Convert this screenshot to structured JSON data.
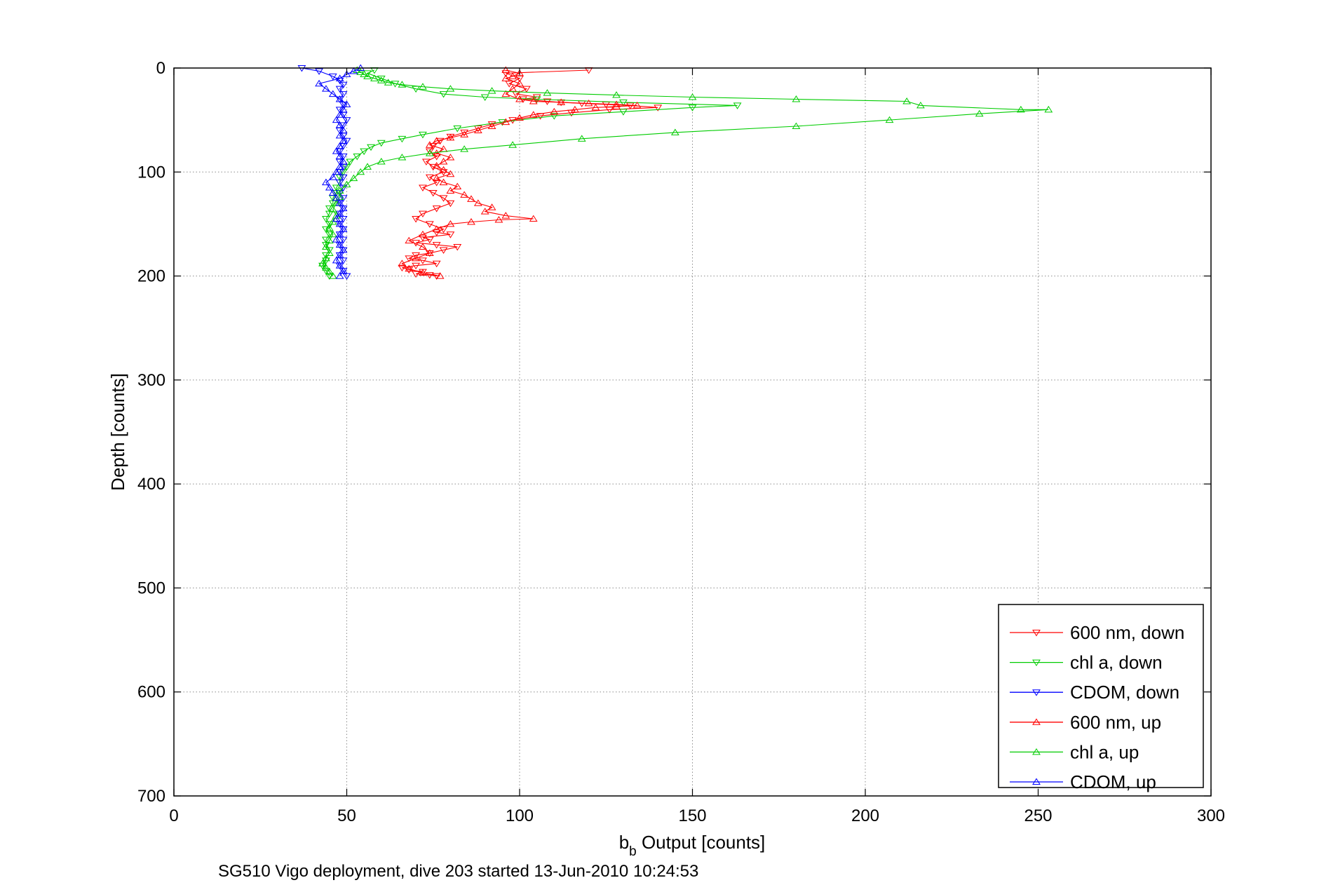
{
  "chart_data": {
    "type": "line",
    "title": "",
    "xlabel": {
      "main": "b",
      "sub": "b",
      "rest": " Output [counts]"
    },
    "ylabel": "Depth [counts]",
    "caption": "SG510 Vigo deployment, dive 203 started 13-Jun-2010 10:24:53",
    "xlim": [
      0,
      300
    ],
    "ylim": [
      0,
      700
    ],
    "y_reversed": true,
    "grid": true,
    "legend_position": "bottom-right",
    "x_ticks": [
      "0",
      "50",
      "100",
      "150",
      "200",
      "250",
      "300"
    ],
    "y_ticks": [
      "0",
      "100",
      "200",
      "300",
      "400",
      "500",
      "600",
      "700"
    ],
    "series": [
      {
        "name": "600 nm, down",
        "color": "#ff0000",
        "marker": "triangle-down",
        "x": [
          120,
          96,
          100,
          97,
          102,
          99,
          105,
          101,
          108,
          112,
          118,
          125,
          132,
          140,
          126,
          115,
          106,
          98,
          92,
          88,
          84,
          80,
          77,
          75,
          74,
          76,
          73,
          75,
          78,
          74,
          76,
          72,
          75,
          78,
          80,
          76,
          72,
          70,
          74,
          78,
          76,
          80,
          72,
          74,
          70,
          76,
          82,
          78,
          74,
          70,
          68,
          72,
          76,
          70,
          66,
          68,
          72,
          70,
          74,
          76
        ],
        "y": [
          2,
          5,
          10,
          15,
          20,
          25,
          28,
          30,
          32,
          33,
          34,
          35,
          36,
          38,
          40,
          43,
          46,
          50,
          54,
          58,
          62,
          66,
          70,
          75,
          80,
          85,
          90,
          95,
          100,
          105,
          110,
          115,
          120,
          125,
          130,
          135,
          140,
          145,
          150,
          155,
          158,
          160,
          163,
          165,
          168,
          170,
          172,
          175,
          178,
          180,
          183,
          185,
          188,
          190,
          192,
          194,
          196,
          198,
          199,
          200
        ]
      },
      {
        "name": "chl a, down",
        "color": "#00cc00",
        "marker": "triangle-down",
        "x": [
          58,
          56,
          60,
          64,
          70,
          78,
          90,
          105,
          130,
          163,
          150,
          130,
          110,
          95,
          82,
          72,
          66,
          60,
          57,
          55,
          53,
          51,
          50,
          49,
          48,
          48,
          47,
          47,
          46,
          46,
          45,
          45,
          44,
          45,
          44,
          45,
          44,
          44,
          45,
          44,
          44,
          43,
          44,
          45
        ],
        "y": [
          2,
          5,
          10,
          15,
          20,
          25,
          28,
          30,
          33,
          36,
          38,
          42,
          46,
          52,
          58,
          64,
          68,
          72,
          76,
          80,
          85,
          90,
          95,
          100,
          105,
          110,
          115,
          120,
          125,
          130,
          135,
          140,
          145,
          150,
          155,
          160,
          165,
          170,
          175,
          180,
          185,
          190,
          195,
          200
        ]
      },
      {
        "name": "CDOM, down",
        "color": "#0000ff",
        "marker": "triangle-down",
        "x": [
          37,
          42,
          46,
          48,
          49,
          48,
          49,
          48,
          49,
          48,
          49,
          50,
          49,
          48,
          49,
          50,
          49,
          48,
          49,
          48,
          49,
          48,
          49,
          48,
          49,
          48,
          49,
          48,
          49,
          48,
          49,
          48,
          49,
          48,
          49,
          48,
          49,
          48,
          49,
          48,
          49,
          50
        ],
        "y": [
          0,
          3,
          8,
          12,
          16,
          20,
          25,
          30,
          35,
          40,
          45,
          50,
          55,
          60,
          65,
          70,
          75,
          80,
          85,
          90,
          95,
          100,
          105,
          110,
          115,
          120,
          125,
          130,
          135,
          140,
          145,
          150,
          155,
          160,
          165,
          170,
          175,
          180,
          185,
          190,
          195,
          200
        ]
      },
      {
        "name": "600 nm, up",
        "color": "#ff0000",
        "marker": "triangle-up",
        "x": [
          77,
          72,
          68,
          66,
          70,
          74,
          72,
          68,
          72,
          76,
          80,
          86,
          94,
          104,
          96,
          90,
          92,
          88,
          86,
          84,
          80,
          82,
          78,
          76,
          80,
          78,
          76,
          78,
          80,
          76,
          78,
          74,
          76,
          80,
          84,
          88,
          92,
          96,
          100,
          104,
          110,
          116,
          122,
          128,
          134,
          128,
          120,
          112,
          104,
          100,
          96,
          98,
          100,
          96,
          98,
          100,
          96
        ],
        "y": [
          200,
          197,
          193,
          188,
          183,
          178,
          172,
          166,
          160,
          155,
          150,
          148,
          146,
          145,
          142,
          138,
          134,
          130,
          126,
          122,
          118,
          114,
          110,
          106,
          102,
          98,
          94,
          90,
          86,
          82,
          78,
          74,
          70,
          67,
          64,
          60,
          56,
          52,
          48,
          45,
          42,
          40,
          38,
          37,
          36,
          35,
          34,
          33,
          32,
          30,
          25,
          20,
          15,
          10,
          8,
          5,
          2
        ]
      },
      {
        "name": "chl a, up",
        "color": "#00cc00",
        "marker": "triangle-up",
        "x": [
          46,
          45,
          44,
          43,
          44,
          45,
          44,
          45,
          46,
          45,
          46,
          47,
          46,
          47,
          48,
          48,
          50,
          52,
          54,
          56,
          60,
          66,
          74,
          84,
          98,
          118,
          145,
          180,
          207,
          233,
          253,
          245,
          216,
          212,
          180,
          150,
          128,
          108,
          92,
          80,
          72,
          66,
          62,
          60,
          58,
          56,
          55,
          54,
          53
        ],
        "y": [
          200,
          196,
          192,
          188,
          183,
          178,
          172,
          166,
          160,
          154,
          148,
          142,
          136,
          130,
          124,
          118,
          112,
          106,
          100,
          95,
          90,
          86,
          82,
          78,
          74,
          68,
          62,
          56,
          50,
          44,
          40,
          40,
          36,
          32,
          30,
          28,
          26,
          24,
          22,
          20,
          18,
          16,
          14,
          12,
          10,
          8,
          6,
          4,
          2
        ]
      },
      {
        "name": "CDOM, up",
        "color": "#0000ff",
        "marker": "triangle-up",
        "x": [
          48,
          49,
          48,
          47,
          48,
          49,
          48,
          47,
          48,
          49,
          48,
          47,
          48,
          49,
          48,
          47,
          46,
          45,
          44,
          46,
          47,
          48,
          49,
          48,
          47,
          48,
          49,
          48,
          49,
          48,
          47,
          48,
          49,
          50,
          48,
          46,
          44,
          42,
          48,
          50,
          52,
          54
        ],
        "y": [
          200,
          195,
          190,
          185,
          180,
          175,
          170,
          165,
          160,
          155,
          150,
          145,
          140,
          135,
          130,
          125,
          120,
          115,
          110,
          105,
          100,
          95,
          90,
          85,
          80,
          75,
          70,
          65,
          60,
          55,
          50,
          45,
          40,
          35,
          30,
          25,
          20,
          15,
          10,
          6,
          3,
          0
        ]
      }
    ]
  }
}
